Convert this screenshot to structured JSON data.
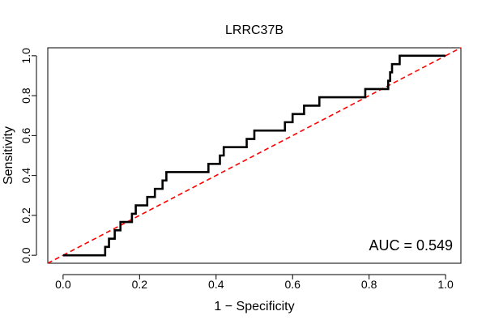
{
  "chart_data": {
    "type": "line",
    "title": "LRRC37B",
    "xlabel": "1 − Specificity",
    "ylabel": "Sensitivity",
    "xlim": [
      -0.04,
      1.04
    ],
    "ylim": [
      -0.04,
      1.04
    ],
    "xticks": [
      "0.0",
      "0.2",
      "0.4",
      "0.6",
      "0.8",
      "1.0"
    ],
    "yticks": [
      "0.0",
      "0.2",
      "0.4",
      "0.6",
      "0.8",
      "1.0"
    ],
    "grid": false,
    "annotation": "AUC = 0.549",
    "colors": {
      "roc": "#000000",
      "reference": "#ff0000"
    },
    "series": [
      {
        "x": [
          0.0,
          0.11,
          0.11,
          0.12,
          0.12,
          0.135,
          0.135,
          0.15,
          0.15,
          0.18,
          0.18,
          0.19,
          0.19,
          0.22,
          0.22,
          0.24,
          0.24,
          0.26,
          0.26,
          0.27,
          0.27,
          0.38,
          0.38,
          0.41,
          0.41,
          0.42,
          0.42,
          0.48,
          0.48,
          0.5,
          0.5,
          0.58,
          0.58,
          0.6,
          0.6,
          0.63,
          0.63,
          0.67,
          0.67,
          0.79,
          0.79,
          0.85,
          0.85,
          0.855,
          0.855,
          0.86,
          0.86,
          0.88,
          0.88,
          1.0
        ],
        "y": [
          0.0,
          0.0,
          0.042,
          0.042,
          0.083,
          0.083,
          0.125,
          0.125,
          0.167,
          0.167,
          0.208,
          0.208,
          0.25,
          0.25,
          0.292,
          0.292,
          0.333,
          0.333,
          0.375,
          0.375,
          0.417,
          0.417,
          0.458,
          0.458,
          0.5,
          0.5,
          0.542,
          0.542,
          0.583,
          0.583,
          0.625,
          0.625,
          0.667,
          0.667,
          0.708,
          0.708,
          0.75,
          0.75,
          0.792,
          0.792,
          0.833,
          0.833,
          0.875,
          0.875,
          0.917,
          0.917,
          0.958,
          0.958,
          1.0,
          1.0
        ]
      },
      {
        "x": [
          0.0,
          1.0
        ],
        "y": [
          0.0,
          1.0
        ]
      }
    ]
  }
}
